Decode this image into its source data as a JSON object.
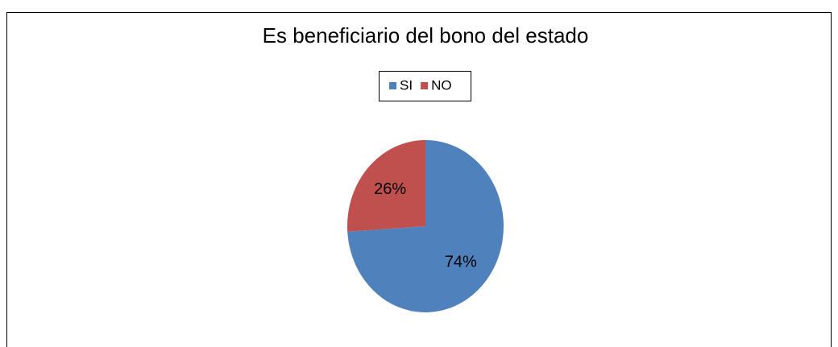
{
  "chart_data": {
    "type": "pie",
    "title": "Es beneficiario del bono del estado",
    "categories": [
      "SI",
      "NO"
    ],
    "values": [
      74,
      26
    ],
    "value_labels": [
      "74%",
      "26%"
    ],
    "colors": [
      "#4f81bd",
      "#c0504d"
    ],
    "legend": "top"
  }
}
